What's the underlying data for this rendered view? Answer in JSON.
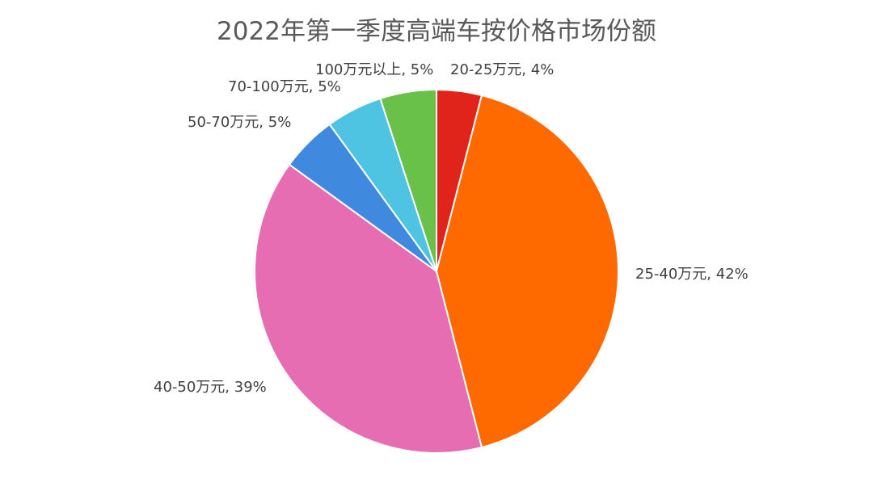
{
  "chart_data": {
    "type": "pie",
    "title": "2022年第一季度高端车按价格市场份额",
    "slices": [
      {
        "name": "20-25万元",
        "value": 4,
        "label": "20-25万元, 4%",
        "color": "#E0231B"
      },
      {
        "name": "25-40万元",
        "value": 42,
        "label": "25-40万元, 42%",
        "color": "#FF6A00"
      },
      {
        "name": "40-50万元",
        "value": 39,
        "label": "40-50万元, 39%",
        "color": "#E66DB1"
      },
      {
        "name": "50-70万元",
        "value": 5,
        "label": "50-70万元, 5%",
        "color": "#3F8ADE"
      },
      {
        "name": "70-100万元",
        "value": 5,
        "label": "70-100万元, 5%",
        "color": "#4EC3E2"
      },
      {
        "name": "100万元以上",
        "value": 5,
        "label": "100万元以上, 5%",
        "color": "#69C14A"
      }
    ],
    "start_angle": "top",
    "direction": "clockwise",
    "legend": "none"
  }
}
